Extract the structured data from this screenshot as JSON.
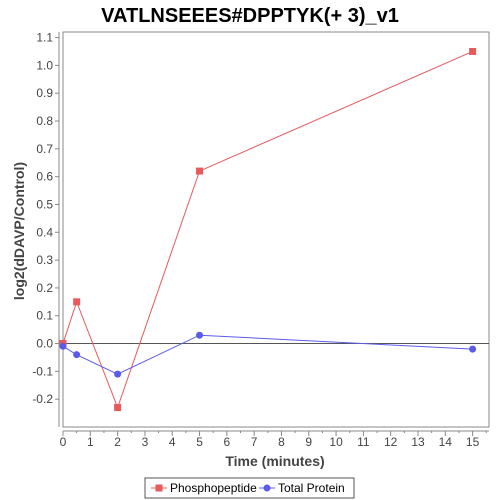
{
  "chart_data": {
    "type": "line",
    "title": "VATLNSEEES#DPPTYK(+ 3)_v1",
    "xlabel": "Time (minutes)",
    "ylabel": "log2(dDAVP/Control)",
    "xlim": [
      0,
      15.6
    ],
    "ylim": [
      -0.3,
      1.12
    ],
    "xticks": [
      0,
      1,
      2,
      3,
      4,
      5,
      6,
      7,
      8,
      9,
      10,
      11,
      12,
      13,
      14,
      15
    ],
    "xtick_labels": [
      "0",
      "1",
      "2",
      "3",
      "4",
      "5",
      "6",
      "7",
      "8",
      "9",
      "10",
      "11",
      "12",
      "13",
      "14",
      "15"
    ],
    "yticks": [
      -0.2,
      -0.1,
      0.0,
      0.1,
      0.2,
      0.3,
      0.4,
      0.5,
      0.6,
      0.7,
      0.8,
      0.9,
      1.0,
      1.1
    ],
    "ytick_labels": [
      "-0.2",
      "-0.1",
      "0.0",
      "0.1",
      "0.2",
      "0.3",
      "0.4",
      "0.5",
      "0.6",
      "0.7",
      "0.8",
      "0.9",
      "1.0",
      "1.1"
    ],
    "grid": false,
    "zero_line": true,
    "legend_position": "bottom",
    "series": [
      {
        "name": "Phosphopeptide",
        "marker": "square",
        "color": "#e8595c",
        "x": [
          0,
          0.5,
          2,
          5,
          15
        ],
        "y": [
          0.0,
          0.15,
          -0.23,
          0.62,
          1.05
        ]
      },
      {
        "name": "Total Protein",
        "marker": "circle",
        "color": "#5b5bea",
        "x": [
          0,
          0.5,
          2,
          5,
          15
        ],
        "y": [
          -0.01,
          -0.04,
          -0.11,
          0.03,
          -0.02
        ]
      }
    ]
  }
}
